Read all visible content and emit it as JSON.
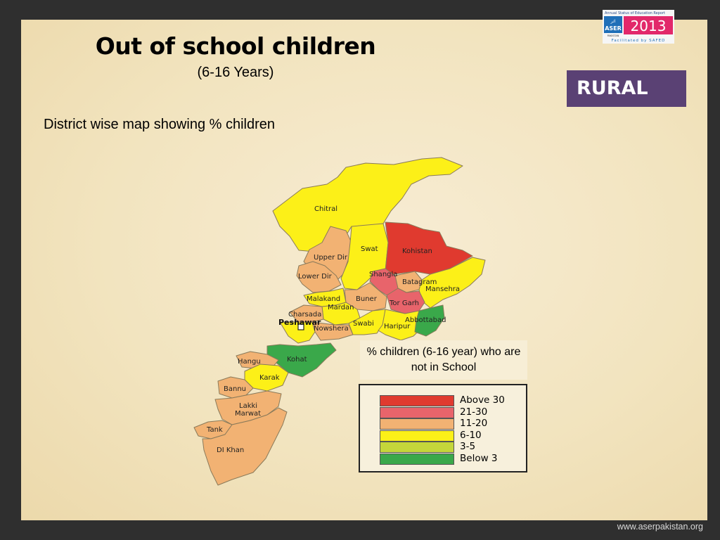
{
  "title": "Out of school children",
  "subtitle": "(6-16 Years)",
  "description": "District wise map showing % children",
  "badge": "RURAL",
  "logo": {
    "top_text": "Annual Status of Education Report",
    "brand": "ASER",
    "urdu": "اثر",
    "country": "PAKISTAN",
    "year": "2013",
    "facilitated": "Facilitated by SAFED"
  },
  "legend": {
    "title": "% children (6-16 year) who are not in School",
    "items": [
      {
        "label": "Above 30",
        "color": "#e03a2f"
      },
      {
        "label": "21-30",
        "color": "#e8646b"
      },
      {
        "label": "11-20",
        "color": "#f2b273"
      },
      {
        "label": "6-10",
        "color": "#fcf018"
      },
      {
        "label": "3-5",
        "color": "#c4d63a"
      },
      {
        "label": "Below 3",
        "color": "#3aa84a"
      }
    ]
  },
  "districts": {
    "chitral": {
      "name": "Chitral",
      "category": "6-10"
    },
    "upper_dir": {
      "name": "Upper Dir",
      "category": "11-20"
    },
    "lower_dir": {
      "name": "Lower Dir",
      "category": "11-20"
    },
    "swat": {
      "name": "Swat",
      "category": "6-10"
    },
    "kohistan": {
      "name": "Kohistan",
      "category": "Above 30"
    },
    "shangla": {
      "name": "Shangla",
      "category": "21-30"
    },
    "batagram": {
      "name": "Batagram",
      "category": "11-20"
    },
    "mansehra": {
      "name": "Mansehra",
      "category": "6-10"
    },
    "tor_garh": {
      "name": "Tor Garh",
      "category": "21-30"
    },
    "buner": {
      "name": "Buner",
      "category": "11-20"
    },
    "malakand": {
      "name": "Malakand",
      "category": "6-10"
    },
    "mardan": {
      "name": "Mardan",
      "category": "6-10"
    },
    "charsada": {
      "name": "Charsada",
      "category": "11-20"
    },
    "peshawar": {
      "name": "Peshawar",
      "category": "6-10"
    },
    "nowshera": {
      "name": "Nowshera",
      "category": "11-20"
    },
    "swabi": {
      "name": "Swabi",
      "category": "6-10"
    },
    "haripur": {
      "name": "Haripur",
      "category": "6-10"
    },
    "abbottabad": {
      "name": "Abbottabad",
      "category": "Below 3"
    },
    "kohat": {
      "name": "Kohat",
      "category": "Below 3"
    },
    "hangu": {
      "name": "Hangu",
      "category": "11-20"
    },
    "karak": {
      "name": "Karak",
      "category": "6-10"
    },
    "bannu": {
      "name": "Bannu",
      "category": "11-20"
    },
    "lakki_marwat": {
      "name": "Lakki Marwat",
      "category": "11-20"
    },
    "tank": {
      "name": "Tank",
      "category": "11-20"
    },
    "di_khan": {
      "name": "DI Khan",
      "category": "11-20"
    }
  },
  "footer": "www.aserpakistan.org"
}
